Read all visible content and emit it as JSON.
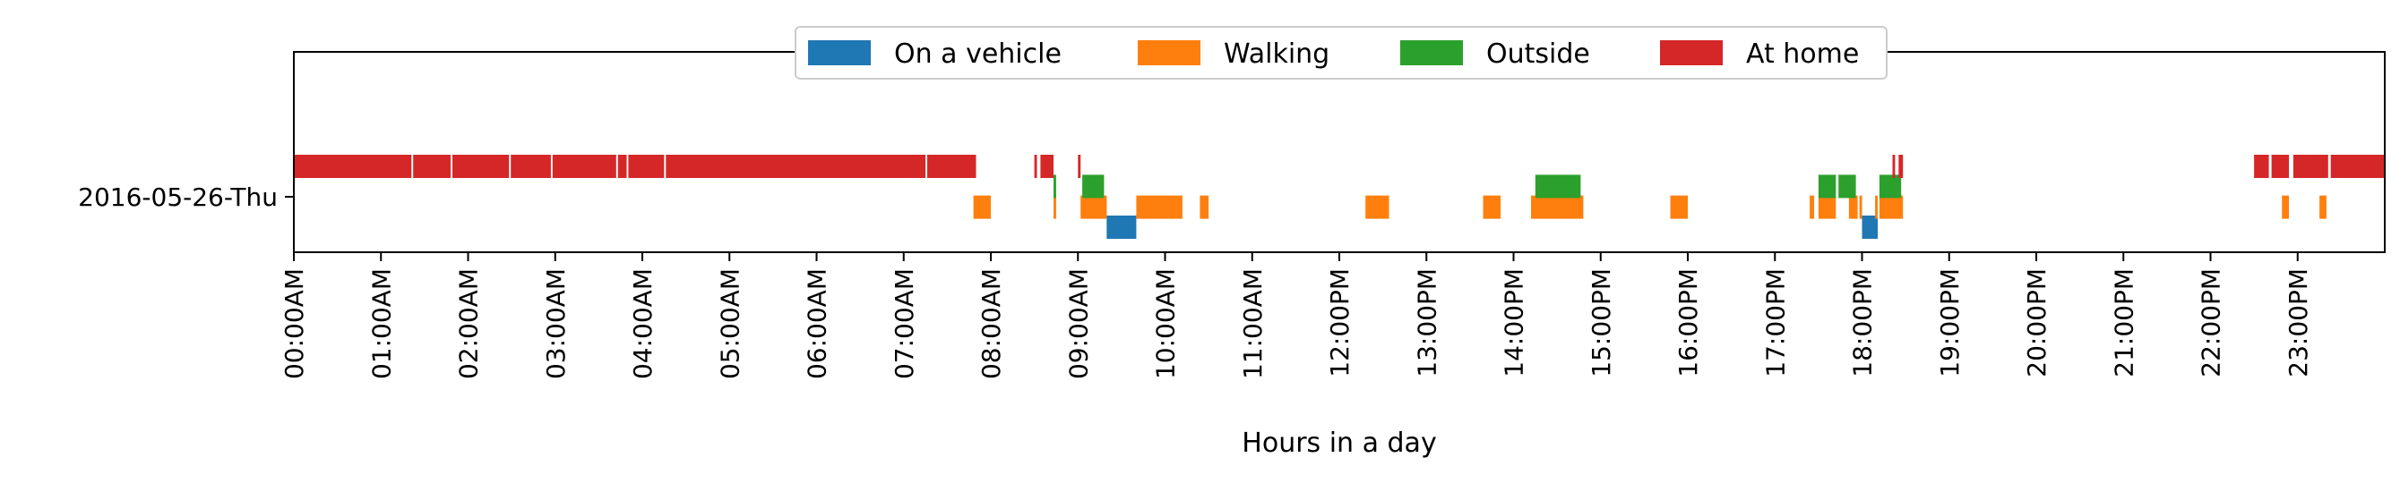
{
  "chart_data": {
    "type": "bar",
    "orientation": "horizontal-timeline",
    "title": "",
    "xlabel": "Hours in a day",
    "ylabel": "",
    "xlim": [
      0,
      24
    ],
    "grid": false,
    "legend_position": "top-center",
    "categories": [
      "2016-05-26-Thu"
    ],
    "x_tick_labels": [
      "00:00AM",
      "01:00AM",
      "02:00AM",
      "03:00AM",
      "04:00AM",
      "05:00AM",
      "06:00AM",
      "07:00AM",
      "08:00AM",
      "09:00AM",
      "10:00AM",
      "11:00AM",
      "12:00PM",
      "13:00PM",
      "14:00PM",
      "15:00PM",
      "16:00PM",
      "17:00PM",
      "18:00PM",
      "19:00PM",
      "20:00PM",
      "21:00PM",
      "22:00PM",
      "23:00PM"
    ],
    "series": [
      {
        "name": "On a vehicle",
        "color": "#1f77b4",
        "intervals": [
          [
            9.33,
            9.67
          ],
          [
            18.0,
            18.18
          ]
        ]
      },
      {
        "name": "Walking",
        "color": "#ff7f0e",
        "intervals": [
          [
            7.8,
            8.0
          ],
          [
            8.72,
            8.75
          ],
          [
            9.03,
            9.33
          ],
          [
            9.67,
            10.2
          ],
          [
            10.4,
            10.5
          ],
          [
            12.3,
            12.57
          ],
          [
            13.65,
            13.85
          ],
          [
            14.2,
            14.8
          ],
          [
            15.8,
            16.0
          ],
          [
            17.4,
            17.45
          ],
          [
            17.5,
            17.7
          ],
          [
            17.85,
            17.95
          ],
          [
            17.97,
            18.0
          ],
          [
            18.15,
            18.18
          ],
          [
            18.2,
            18.47
          ],
          [
            22.82,
            22.9
          ],
          [
            23.25,
            23.33
          ]
        ]
      },
      {
        "name": "Outside",
        "color": "#2ca02c",
        "intervals": [
          [
            8.72,
            8.75
          ],
          [
            9.05,
            9.3
          ],
          [
            14.25,
            14.77
          ],
          [
            17.5,
            17.7
          ],
          [
            17.73,
            17.93
          ],
          [
            18.2,
            18.45
          ]
        ]
      },
      {
        "name": "At home",
        "color": "#d62728",
        "intervals": [
          [
            0.0,
            1.35
          ],
          [
            1.37,
            1.8
          ],
          [
            1.82,
            2.47
          ],
          [
            2.49,
            2.95
          ],
          [
            2.97,
            3.7
          ],
          [
            3.72,
            3.82
          ],
          [
            3.84,
            4.25
          ],
          [
            4.27,
            7.25
          ],
          [
            7.27,
            7.83
          ],
          [
            8.5,
            8.53
          ],
          [
            8.57,
            8.72
          ],
          [
            9.0,
            9.03
          ],
          [
            18.35,
            18.38
          ],
          [
            18.42,
            18.47
          ],
          [
            22.5,
            22.67
          ],
          [
            22.7,
            22.9
          ],
          [
            22.95,
            23.35
          ],
          [
            23.38,
            24.0
          ]
        ]
      }
    ],
    "stack_offsets": {
      "At home": 0.5,
      "Outside": 0.17,
      "Walking": -0.17,
      "On a vehicle": -0.5
    }
  }
}
